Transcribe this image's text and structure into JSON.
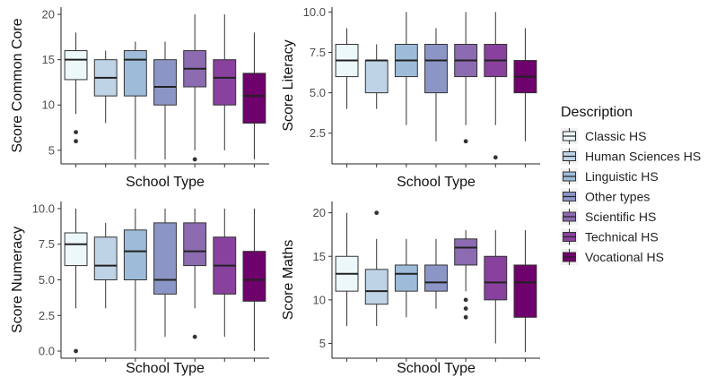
{
  "colors": {
    "Classic HS": "#edf8fb",
    "Human Sciences HS": "#bfd3e6",
    "Linguistic HS": "#9ebcda",
    "Other types": "#8c96c6",
    "Scientific HS": "#8c6bb1",
    "Technical HS": "#88419d",
    "Vocational HS": "#6e016b"
  },
  "legend": {
    "title": "Description",
    "items": [
      "Classic HS",
      "Human Sciences HS",
      "Linguistic HS",
      "Other types",
      "Scientific HS",
      "Technical HS",
      "Vocational HS"
    ],
    "position": "right"
  },
  "chart_data": [
    {
      "type": "boxplot",
      "xlabel": "School Type",
      "ylabel": "Score Common Core",
      "yticks": [
        "5",
        "10",
        "15",
        "20"
      ],
      "ylim": [
        3.5,
        20.8
      ],
      "series": [
        {
          "name": "Classic HS",
          "min": 9,
          "q1": 12.8,
          "median": 15,
          "q3": 16,
          "max": 18,
          "outliers": [
            7,
            6
          ]
        },
        {
          "name": "Human Sciences HS",
          "min": 8,
          "q1": 11,
          "median": 13,
          "q3": 15,
          "max": 16,
          "outliers": []
        },
        {
          "name": "Linguistic HS",
          "min": 4,
          "q1": 11,
          "median": 15,
          "q3": 16,
          "max": 17,
          "outliers": []
        },
        {
          "name": "Other types",
          "min": 4,
          "q1": 10,
          "median": 12,
          "q3": 15,
          "max": 17,
          "outliers": []
        },
        {
          "name": "Scientific HS",
          "min": 5,
          "q1": 12,
          "median": 14,
          "q3": 16,
          "max": 20,
          "outliers": [
            4
          ]
        },
        {
          "name": "Technical HS",
          "min": 5,
          "q1": 10,
          "median": 13,
          "q3": 15,
          "max": 20,
          "outliers": []
        },
        {
          "name": "Vocational HS",
          "min": 4,
          "q1": 8,
          "median": 11,
          "q3": 13.5,
          "max": 18,
          "outliers": []
        }
      ]
    },
    {
      "type": "boxplot",
      "xlabel": "School Type",
      "ylabel": "Score Literacy",
      "yticks": [
        "2.5",
        "5.0",
        "7.5",
        "10.0"
      ],
      "ylim": [
        0.6,
        10.3
      ],
      "series": [
        {
          "name": "Classic HS",
          "min": 4,
          "q1": 6,
          "median": 7,
          "q3": 8,
          "max": 9,
          "outliers": []
        },
        {
          "name": "Human Sciences HS",
          "min": 4,
          "q1": 5,
          "median": 7,
          "q3": 7,
          "max": 8,
          "outliers": []
        },
        {
          "name": "Linguistic HS",
          "min": 3,
          "q1": 6,
          "median": 7,
          "q3": 8,
          "max": 10,
          "outliers": []
        },
        {
          "name": "Other types",
          "min": 2,
          "q1": 5,
          "median": 7,
          "q3": 8,
          "max": 9,
          "outliers": []
        },
        {
          "name": "Scientific HS",
          "min": 3,
          "q1": 6,
          "median": 7,
          "q3": 8,
          "max": 10,
          "outliers": [
            2
          ]
        },
        {
          "name": "Technical HS",
          "min": 3,
          "q1": 6,
          "median": 7,
          "q3": 8,
          "max": 10,
          "outliers": [
            1
          ]
        },
        {
          "name": "Vocational HS",
          "min": 2,
          "q1": 5,
          "median": 6,
          "q3": 7,
          "max": 9,
          "outliers": []
        }
      ]
    },
    {
      "type": "boxplot",
      "xlabel": "School Type",
      "ylabel": "Score Numeracy",
      "yticks": [
        "0.0",
        "2.5",
        "5.0",
        "7.5",
        "10.0"
      ],
      "ylim": [
        -0.5,
        10.5
      ],
      "series": [
        {
          "name": "Classic HS",
          "min": 3,
          "q1": 6,
          "median": 7.5,
          "q3": 8.3,
          "max": 10,
          "outliers": [
            0
          ]
        },
        {
          "name": "Human Sciences HS",
          "min": 3,
          "q1": 5,
          "median": 6,
          "q3": 8,
          "max": 9,
          "outliers": []
        },
        {
          "name": "Linguistic HS",
          "min": 0,
          "q1": 5,
          "median": 7,
          "q3": 8.5,
          "max": 10,
          "outliers": []
        },
        {
          "name": "Other types",
          "min": 1,
          "q1": 4,
          "median": 5,
          "q3": 9,
          "max": 10,
          "outliers": []
        },
        {
          "name": "Scientific HS",
          "min": 3,
          "q1": 6,
          "median": 7,
          "q3": 9,
          "max": 10,
          "outliers": [
            1
          ]
        },
        {
          "name": "Technical HS",
          "min": 1,
          "q1": 4,
          "median": 6,
          "q3": 8,
          "max": 10,
          "outliers": []
        },
        {
          "name": "Vocational HS",
          "min": 0,
          "q1": 3.5,
          "median": 5,
          "q3": 7,
          "max": 10,
          "outliers": []
        }
      ]
    },
    {
      "type": "boxplot",
      "xlabel": "School Type",
      "ylabel": "Score Maths",
      "yticks": [
        "5",
        "10",
        "15",
        "20"
      ],
      "ylim": [
        3.3,
        21.3
      ],
      "series": [
        {
          "name": "Classic HS",
          "min": 7,
          "q1": 11,
          "median": 13,
          "q3": 15,
          "max": 20,
          "outliers": []
        },
        {
          "name": "Human Sciences HS",
          "min": 7,
          "q1": 9.5,
          "median": 11,
          "q3": 13.5,
          "max": 17,
          "outliers": [
            20
          ]
        },
        {
          "name": "Linguistic HS",
          "min": 8,
          "q1": 11,
          "median": 13,
          "q3": 14,
          "max": 17,
          "outliers": []
        },
        {
          "name": "Other types",
          "min": 9,
          "q1": 11,
          "median": 12,
          "q3": 14,
          "max": 17,
          "outliers": []
        },
        {
          "name": "Scientific HS",
          "min": 11,
          "q1": 14,
          "median": 16,
          "q3": 17,
          "max": 18,
          "outliers": [
            10,
            9,
            8
          ]
        },
        {
          "name": "Technical HS",
          "min": 5,
          "q1": 10,
          "median": 12,
          "q3": 15,
          "max": 18,
          "outliers": []
        },
        {
          "name": "Vocational HS",
          "min": 4,
          "q1": 8,
          "median": 12,
          "q3": 14,
          "max": 18,
          "outliers": []
        }
      ]
    }
  ]
}
